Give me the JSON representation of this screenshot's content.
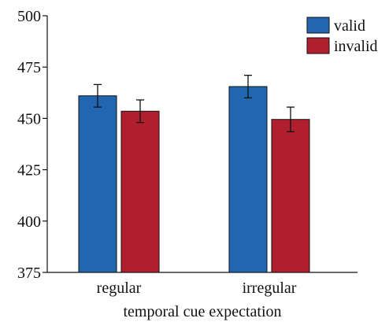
{
  "chart_data": {
    "type": "bar",
    "title": "",
    "xlabel": "temporal cue expectation",
    "ylabel": "",
    "ylim": [
      375,
      500
    ],
    "yticks": [
      375,
      400,
      425,
      450,
      475,
      500
    ],
    "categories": [
      "regular",
      "irregular"
    ],
    "series": [
      {
        "name": "valid",
        "color": "#2066B0",
        "values": [
          461,
          465.5
        ],
        "errors": [
          5.5,
          5.5
        ]
      },
      {
        "name": "invalid",
        "color": "#B01F2E",
        "values": [
          453.5,
          449.5
        ],
        "errors": [
          5.5,
          6
        ]
      }
    ],
    "legend_position": "top-right",
    "grid": false
  }
}
